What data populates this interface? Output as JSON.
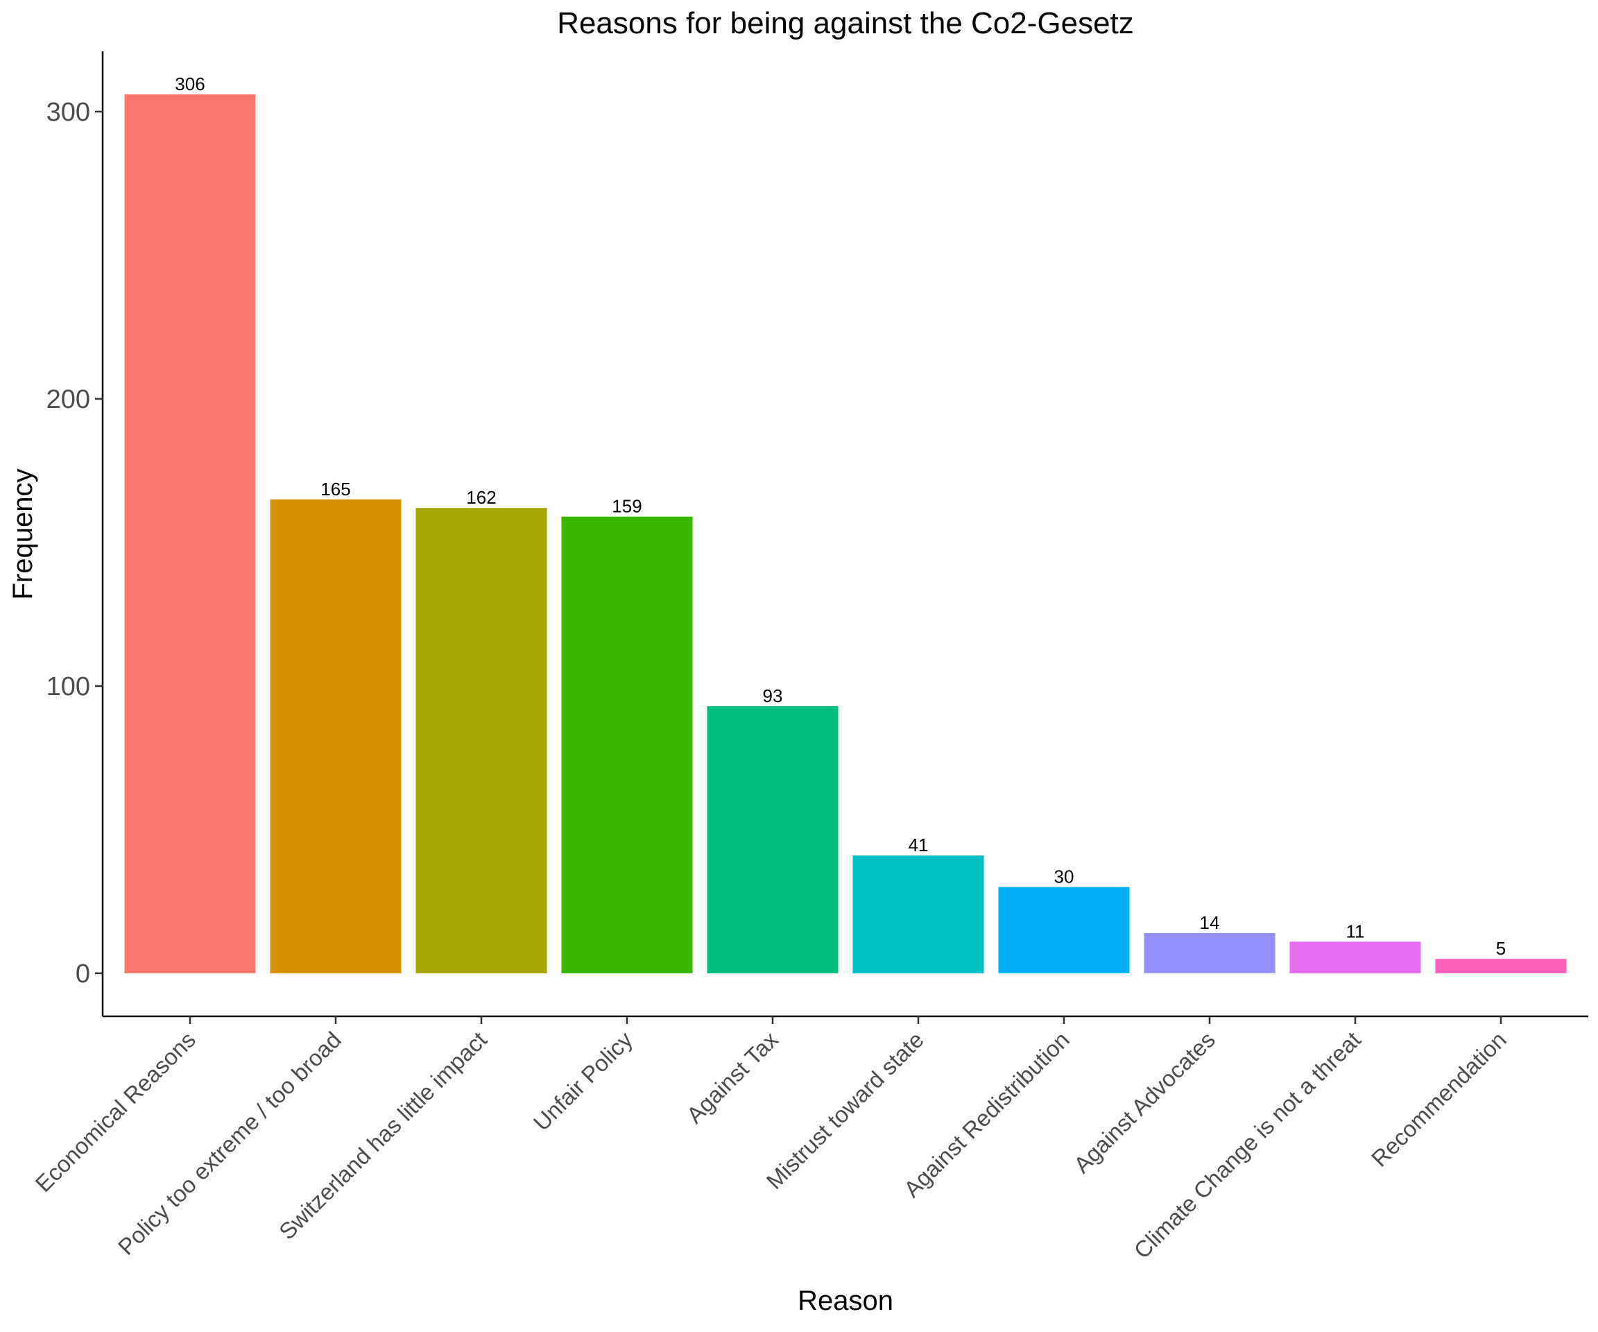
{
  "chart_data": {
    "type": "bar",
    "title": "Reasons for being against the Co2-Gesetz",
    "xlabel": "Reason",
    "ylabel": "Frequency",
    "categories": [
      "Economical Reasons",
      "Policy too extreme / too broad",
      "Switzerland has little impact",
      "Unfair Policy",
      "Against Tax",
      "Mistrust toward state",
      "Against Redistribution",
      "Against Advocates",
      "Climate Change is not a threat",
      "Recommendation"
    ],
    "values": [
      306,
      165,
      162,
      159,
      93,
      41,
      30,
      14,
      11,
      5
    ],
    "colors": [
      "#F8766D",
      "#D89000",
      "#A3A500",
      "#39B600",
      "#00BF7D",
      "#00BFC4",
      "#00B0F6",
      "#9590FF",
      "#E76BF3",
      "#FF62BC"
    ],
    "yticks": [
      0,
      100,
      200,
      300
    ],
    "ylim": [
      -15,
      321
    ],
    "grid": false,
    "legend": "none"
  }
}
